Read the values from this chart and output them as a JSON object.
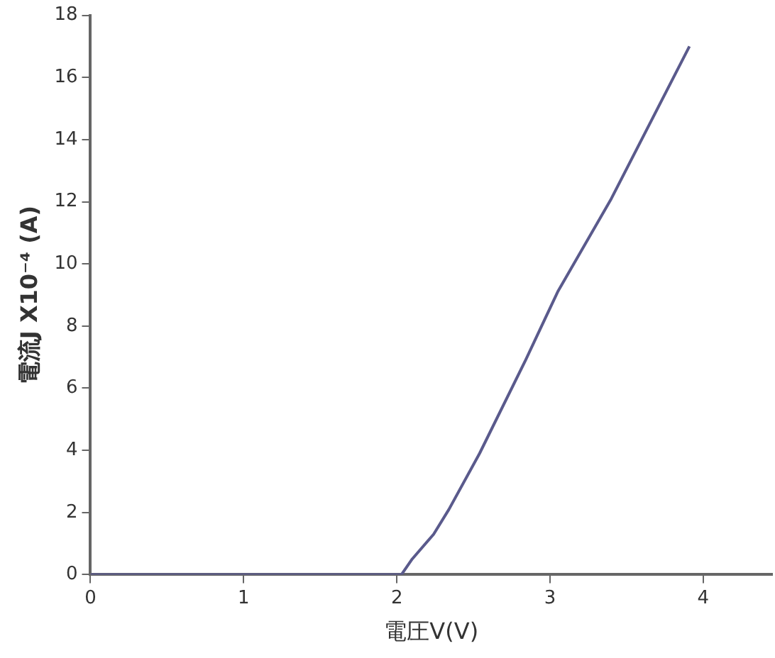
{
  "chart_data": {
    "type": "line",
    "xlabel": "電圧V(V)",
    "ylabel": "電流J X10⁻⁴ (A)",
    "x": [
      0,
      2.03,
      2.1,
      2.24,
      2.34,
      2.54,
      2.84,
      3.05,
      3.4,
      3.91
    ],
    "series": [
      {
        "color": "#5a5a8c",
        "values": [
          0,
          0,
          0.5,
          1.3,
          2.1,
          3.9,
          6.9,
          9.1,
          12.1,
          17
        ]
      }
    ],
    "xlim": [
      0,
      4.45
    ],
    "xticks": [
      0,
      1,
      2,
      3,
      4
    ],
    "ylim": [
      0,
      18
    ],
    "yticks": [
      0,
      2,
      4,
      6,
      8,
      10,
      12,
      14,
      16,
      18
    ],
    "grid": false,
    "legend": false,
    "marker": "none",
    "line_style": "solid"
  }
}
